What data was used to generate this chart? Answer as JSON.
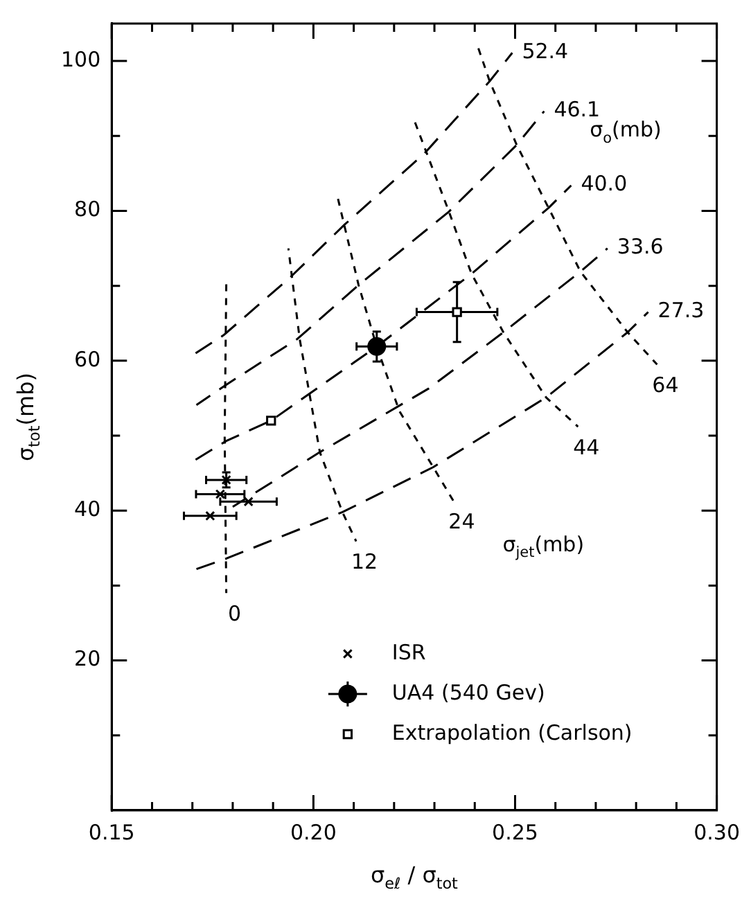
{
  "chart_data": {
    "type": "scatter",
    "xlabel": "σ$_{eℓ}$ / σ$_{tot}$",
    "ylabel": "σ$_{tot}$(mb)",
    "xlim": [
      0.15,
      0.3
    ],
    "ylim": [
      0,
      105
    ],
    "xticks": [
      0.15,
      {
        "value": 0.16,
        "label": null
      },
      {
        "value": 0.17,
        "label": null
      },
      {
        "value": 0.18,
        "label": null
      },
      {
        "value": 0.19,
        "label": null
      },
      {
        "value": 0.2,
        "label": "0.20"
      },
      {
        "value": 0.21,
        "label": null
      },
      {
        "value": 0.22,
        "label": null
      },
      {
        "value": 0.23,
        "label": null
      },
      {
        "value": 0.24,
        "label": null
      },
      0.25,
      {
        "value": 0.26,
        "label": null
      },
      {
        "value": 0.27,
        "label": null
      },
      {
        "value": 0.28,
        "label": null
      },
      {
        "value": 0.29,
        "label": null
      },
      {
        "value": 0.3,
        "label": "0.30"
      }
    ],
    "yticks": [
      {
        "value": 10,
        "label": null
      },
      20,
      {
        "value": 30,
        "label": null
      },
      40,
      {
        "value": 50,
        "label": null
      },
      60,
      {
        "value": 70,
        "label": null
      },
      80,
      {
        "value": 90,
        "label": null
      },
      100
    ],
    "grid": false,
    "legend": "bottom",
    "annotations": [
      "σ$_{o}$(mb)",
      "σ$_{jet}$(mb)",
      {
        "text": "52.4",
        "x": 0.2493,
        "y": 101.1
      },
      {
        "text": "46.1",
        "x": 0.2572,
        "y": 93.3
      },
      {
        "text": "40.0",
        "x": 0.2639,
        "y": 83.4
      },
      {
        "text": "33.6",
        "x": 0.2729,
        "y": 75.0
      },
      {
        "text": "27.3",
        "x": 0.283,
        "y": 66.5
      },
      {
        "text": "0",
        "x": 0.1784,
        "y": 29.0
      },
      {
        "text": "12",
        "x": 0.2106,
        "y": 35.9
      },
      {
        "text": "24",
        "x": 0.2347,
        "y": 41.3
      },
      {
        "text": "44",
        "x": 0.2656,
        "y": 51.2
      },
      {
        "text": "64",
        "x": 0.2852,
        "y": 59.5
      }
    ],
    "series": [
      {
        "type": "line",
        "color": "#000000",
        "line_style": "dashed",
        "x": [
          0.1708,
          0.1777,
          0.194,
          0.2078,
          0.2274,
          0.2437,
          0.2493
        ],
        "values": [
          61.0,
          63.4,
          71.0,
          78.2,
          87.6,
          97.3,
          101.1
        ]
      },
      {
        "type": "line",
        "color": "#000000",
        "line_style": "dashed",
        "x": [
          0.171,
          0.1784,
          0.196,
          0.2112,
          0.2336,
          0.2504,
          0.2572
        ],
        "values": [
          54.1,
          56.8,
          62.9,
          70.1,
          79.9,
          88.8,
          93.3
        ]
      },
      {
        "type": "line",
        "color": "#000000",
        "line_style": "dashed",
        "x": [
          0.1708,
          0.1784,
          0.1895,
          0.2157,
          0.2392,
          0.2583,
          0.2639
        ],
        "values": [
          46.8,
          49.3,
          52.0,
          61.9,
          71.6,
          80.4,
          83.4
        ]
      },
      {
        "type": "line",
        "color": "#000000",
        "line_style": "dashed",
        "x": [
          0.18,
          0.2016,
          0.2286,
          0.2471,
          0.2662,
          0.2729
        ],
        "values": [
          40.5,
          47.8,
          56.3,
          63.8,
          71.9,
          75.0
        ]
      },
      {
        "type": "line",
        "color": "#000000",
        "line_style": "dashed",
        "x": [
          0.171,
          0.1784,
          0.2072,
          0.2297,
          0.2577,
          0.2779,
          0.283
        ],
        "values": [
          32.2,
          33.6,
          39.8,
          45.8,
          55.1,
          63.8,
          66.5
        ]
      },
      {
        "type": "line",
        "color": "#000000",
        "line_style": "dotted",
        "x": [
          0.1784,
          0.178,
          0.1784
        ],
        "values": [
          70.2,
          50,
          29.0
        ]
      },
      {
        "type": "line",
        "color": "#000000",
        "line_style": "dotted",
        "x": [
          0.1938,
          0.1966,
          0.2016,
          0.2072,
          0.2106
        ],
        "values": [
          75.0,
          62.9,
          47.8,
          39.8,
          35.9
        ]
      },
      {
        "type": "line",
        "color": "#000000",
        "line_style": "dotted",
        "x": [
          0.2061,
          0.2112,
          0.2157,
          0.2213,
          0.2297,
          0.2347
        ],
        "values": [
          81.6,
          70.1,
          61.9,
          53.3,
          45.8,
          41.3
        ]
      },
      {
        "type": "line",
        "color": "#000000",
        "line_style": "dotted",
        "x": [
          0.2252,
          0.2336,
          0.2392,
          0.2471,
          0.2577,
          0.2656
        ],
        "values": [
          91.8,
          79.9,
          71.6,
          63.8,
          55.1,
          51.2
        ]
      },
      {
        "type": "line",
        "color": "#000000",
        "line_style": "dotted",
        "x": [
          0.2409,
          0.2437,
          0.2504,
          0.2583,
          0.2662,
          0.2779,
          0.2852
        ],
        "values": [
          101.7,
          97.3,
          88.8,
          80.4,
          71.9,
          63.8,
          59.5
        ]
      },
      {
        "name": "ISR",
        "type": "scatter",
        "marker": "cross",
        "color": "#000000",
        "x": [
          0.1744,
          0.1769,
          0.1784,
          0.1839
        ],
        "values": [
          39.3,
          42.2,
          44.1,
          41.2
        ],
        "xerrors": [
          0.0065,
          0.006,
          0.005,
          0.007
        ],
        "errors": [
          null,
          null,
          1,
          null
        ]
      },
      {
        "name": "UA4 (540 Gev)",
        "type": "scatter",
        "marker": "circle",
        "color": "#000000",
        "x": [
          0.2157
        ],
        "values": [
          61.9
        ],
        "xerrors": [
          0.005
        ],
        "errors": [
          2
        ]
      },
      {
        "name": "Extrapolation (Carlson)",
        "type": "scatter",
        "marker": "square",
        "color": "#000000",
        "x": [
          0.1895,
          0.2356
        ],
        "values": [
          52.0,
          66.5
        ],
        "xerrors": [
          null,
          0.01
        ],
        "errors": [
          null,
          4
        ]
      }
    ]
  }
}
